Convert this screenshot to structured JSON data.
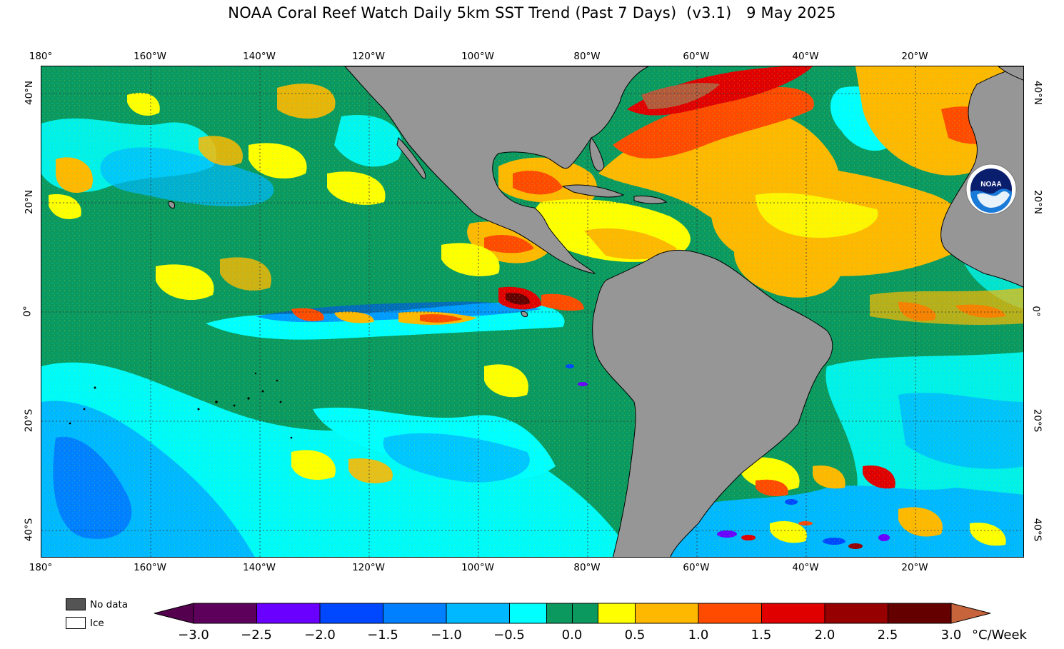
{
  "title": "NOAA Coral Reef Watch Daily 5km SST Trend (Past 7 Days)  (v3.1)   9 May 2025",
  "longitude_labels": [
    "180°",
    "160°W",
    "140°W",
    "120°W",
    "100°W",
    "80°W",
    "60°W",
    "40°W",
    "20°W"
  ],
  "latitude_labels": [
    "40°N",
    "20°N",
    "0°",
    "20°S",
    "40°S"
  ],
  "legend": {
    "no_data_label": "No data",
    "ice_label": "Ice",
    "no_data_color": "#545454",
    "ice_color": "#ffffff"
  },
  "colorbar": {
    "tick_labels": [
      "−3.0",
      "−2.5",
      "−2.0",
      "−1.5",
      "−1.0",
      "−0.5",
      "0.0",
      "0.5",
      "1.0",
      "1.5",
      "2.0",
      "2.5",
      "3.0"
    ],
    "units": "°C/Week",
    "colors": [
      "#55004f",
      "#5c005c",
      "#6a00ff",
      "#0048ff",
      "#0080ff",
      "#00b8ff",
      "#00ffff",
      "#0b9960",
      "#0b9960",
      "#ffff00",
      "#ffb800",
      "#ff4b00",
      "#e10000",
      "#960000",
      "#640000",
      "#c8643c"
    ]
  },
  "map": {
    "land_color": "#969696",
    "dominant_ocean_colors": [
      "#0b9960",
      "#00ffff",
      "#00b8ff",
      "#ffff00",
      "#ffb800",
      "#ff4b00",
      "#e10000"
    ],
    "logo_text": "NOAA"
  }
}
